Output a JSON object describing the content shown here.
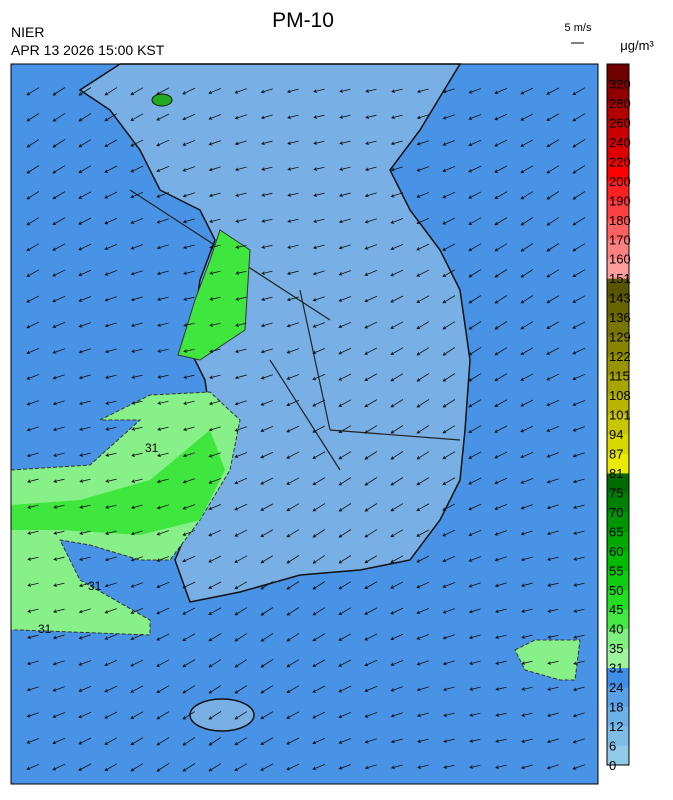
{
  "title": "PM-10",
  "agency": "NIER",
  "timestamp": "APR 13 2026 15:00 KST",
  "wind_scale": "5 m/s",
  "colorbar": {
    "unit": "μg/m³",
    "ticks": [
      0,
      6,
      12,
      18,
      24,
      31,
      35,
      40,
      45,
      50,
      55,
      60,
      65,
      70,
      75,
      81,
      87,
      94,
      101,
      108,
      115,
      122,
      129,
      136,
      143,
      151,
      160,
      170,
      180,
      190,
      200,
      220,
      240,
      260,
      280,
      320
    ],
    "colors": [
      "#92cbe8",
      "#7fbde6",
      "#6eb0e8",
      "#5aa2e8",
      "#3f8fe8",
      "#9cf59c",
      "#80f080",
      "#44e844",
      "#22dd22",
      "#10cc10",
      "#00bb00",
      "#00a800",
      "#009400",
      "#008000",
      "#006c00",
      "#eaea00",
      "#d8d800",
      "#c8c600",
      "#b8b400",
      "#a8a400",
      "#989400",
      "#888400",
      "#787400",
      "#686400",
      "#585400",
      "#ff9c9c",
      "#ff8080",
      "#ff6060",
      "#ff4040",
      "#ff2020",
      "#ff0000",
      "#e00000",
      "#c80000",
      "#b00000",
      "#900000",
      "#700000"
    ]
  },
  "contour_labels": [
    "31",
    "31",
    "31"
  ]
}
